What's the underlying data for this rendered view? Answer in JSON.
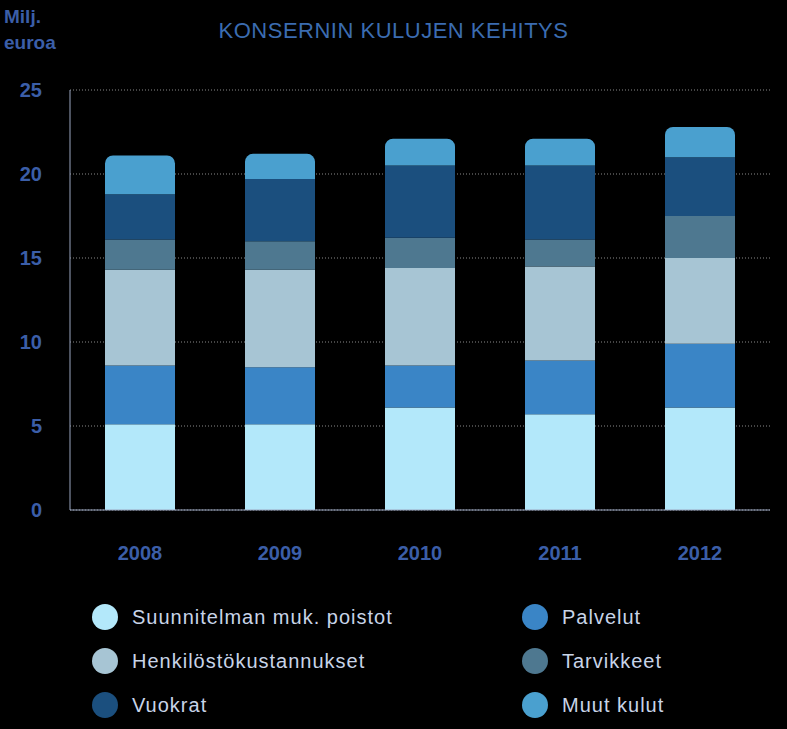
{
  "chart_data": {
    "type": "bar",
    "title": "KONSERNIN KULUJEN KEHITYS",
    "ylabel": "Milj. euroa",
    "categories": [
      "2008",
      "2009",
      "2010",
      "2011",
      "2012"
    ],
    "series": [
      {
        "name": "Suunnitelman muk. poistot",
        "color": "#b3e8fa",
        "values": [
          5.1,
          5.1,
          6.1,
          5.7,
          6.1
        ]
      },
      {
        "name": "Palvelut",
        "color": "#3a85c6",
        "values": [
          3.5,
          3.4,
          2.5,
          3.2,
          3.8
        ]
      },
      {
        "name": "Henkilöstökustannukset",
        "color": "#a7c5d4",
        "values": [
          5.7,
          5.8,
          5.8,
          5.6,
          5.1
        ]
      },
      {
        "name": "Tarvikkeet",
        "color": "#4e7890",
        "values": [
          1.8,
          1.7,
          1.8,
          1.6,
          2.5
        ]
      },
      {
        "name": "Vuokrat",
        "color": "#1b4f7e",
        "values": [
          2.7,
          3.7,
          4.3,
          4.4,
          3.5
        ]
      },
      {
        "name": "Muut kulut",
        "color": "#4aa0cf",
        "values": [
          2.3,
          1.5,
          1.6,
          1.6,
          1.8
        ]
      }
    ],
    "ylim": [
      0,
      25
    ],
    "yticks": [
      0,
      5,
      10,
      15,
      20,
      25
    ],
    "grid": true,
    "stacked": true
  }
}
